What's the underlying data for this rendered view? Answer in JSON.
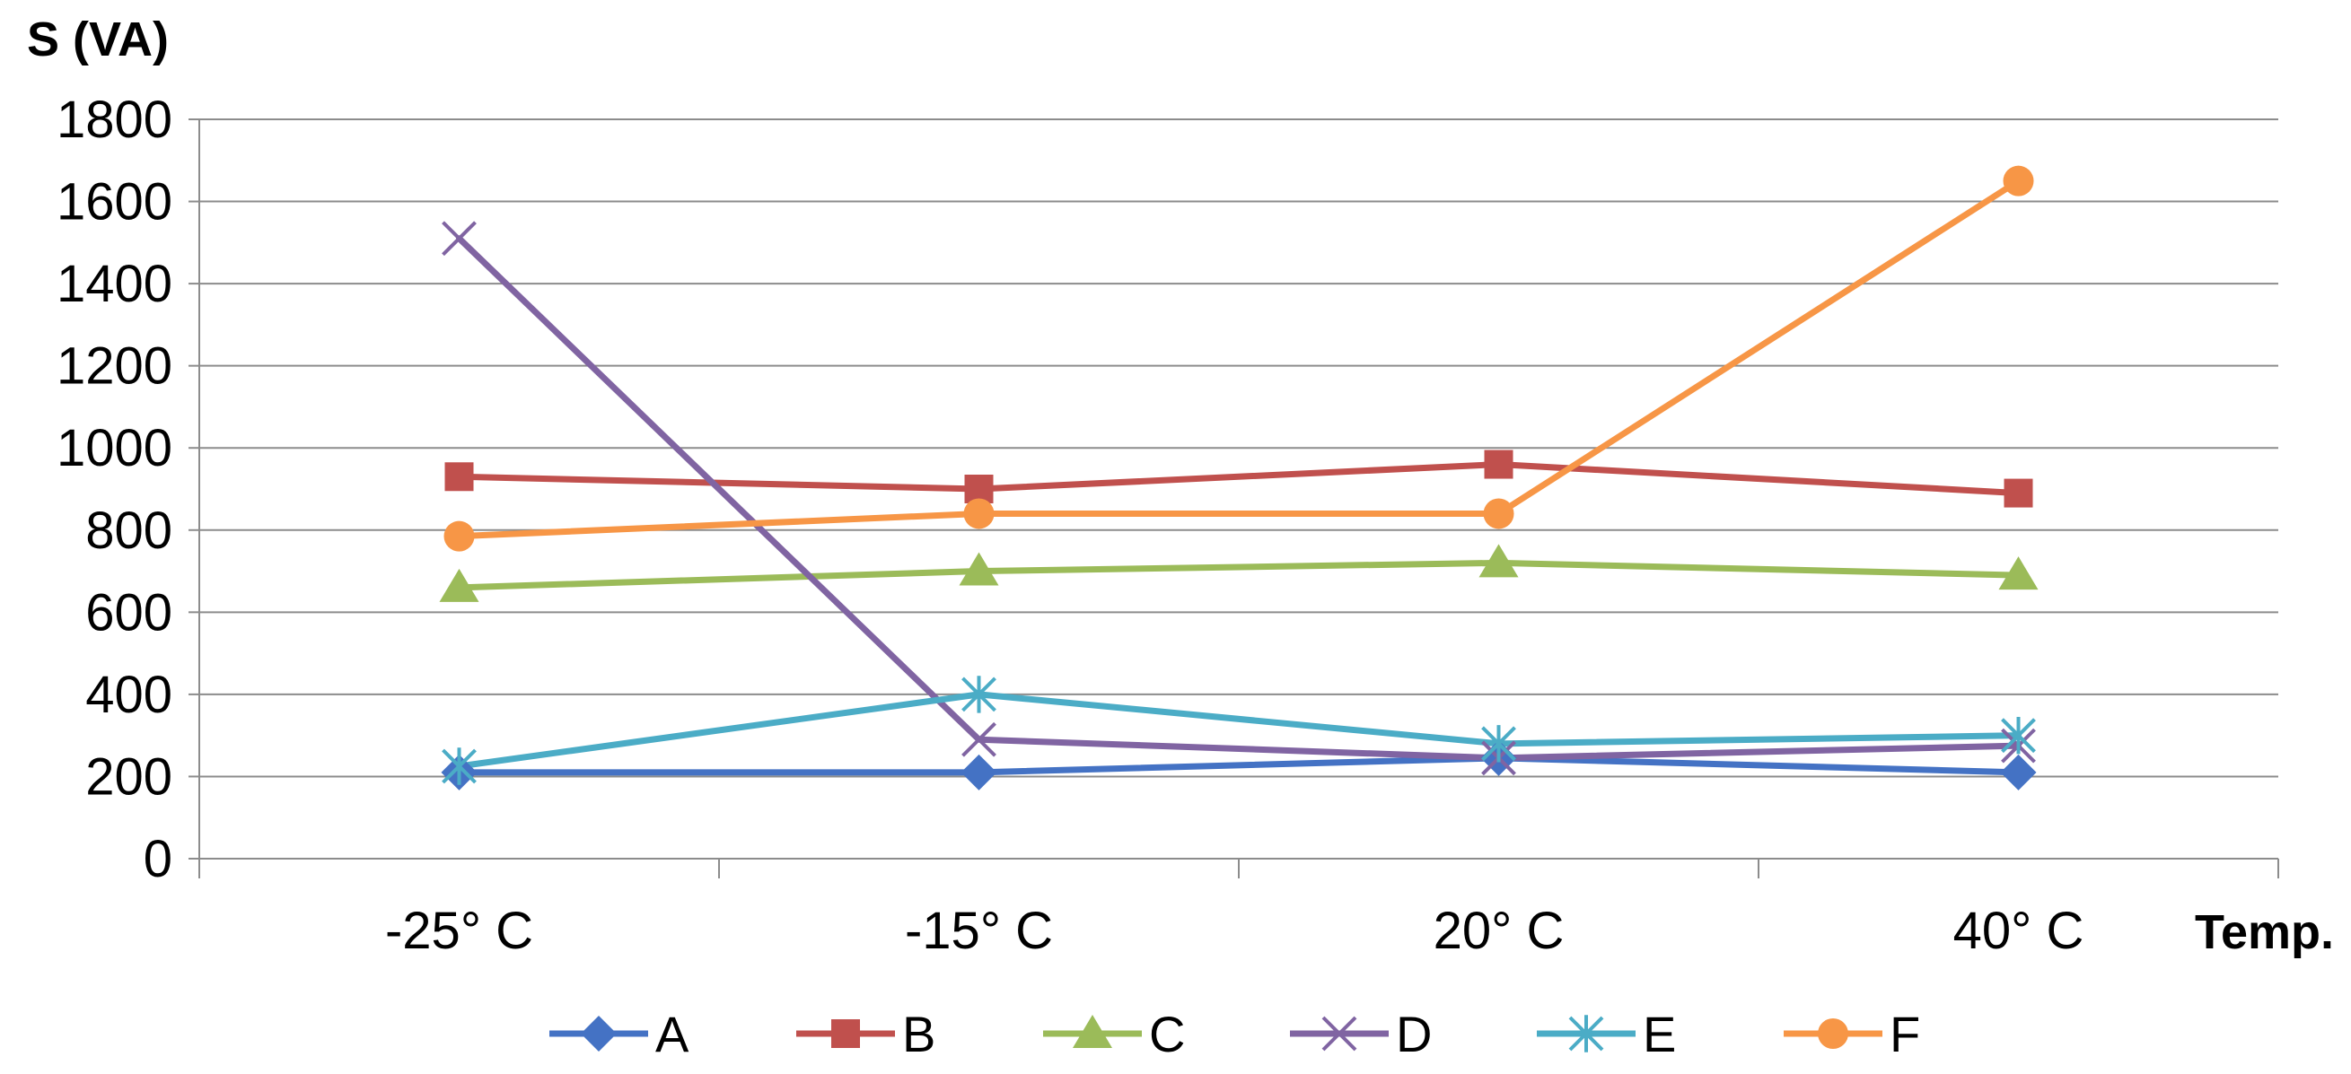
{
  "chart_data": {
    "type": "line",
    "title": "",
    "ylabel": "S (VA)",
    "xlabel": "Temp.",
    "ylim": [
      0,
      1800
    ],
    "yticks": [
      0,
      200,
      400,
      600,
      800,
      1000,
      1200,
      1400,
      1600,
      1800
    ],
    "categories": [
      "-25° C",
      "-15° C",
      "20° C",
      "40° C"
    ],
    "grid": true,
    "legend_position": "bottom",
    "series": [
      {
        "name": "A",
        "color": "#4472C4",
        "marker": "diamond",
        "values": [
          210,
          210,
          245,
          210
        ]
      },
      {
        "name": "B",
        "color": "#C0504D",
        "marker": "square",
        "values": [
          930,
          900,
          960,
          890
        ]
      },
      {
        "name": "C",
        "color": "#9BBB59",
        "marker": "triangle",
        "values": [
          660,
          700,
          720,
          690
        ]
      },
      {
        "name": "D",
        "color": "#8064A2",
        "marker": "x",
        "values": [
          1510,
          290,
          245,
          275
        ]
      },
      {
        "name": "E",
        "color": "#4BACC6",
        "marker": "star",
        "values": [
          225,
          400,
          280,
          300
        ]
      },
      {
        "name": "F",
        "color": "#F79646",
        "marker": "circle",
        "values": [
          785,
          840,
          840,
          1650
        ]
      }
    ]
  }
}
